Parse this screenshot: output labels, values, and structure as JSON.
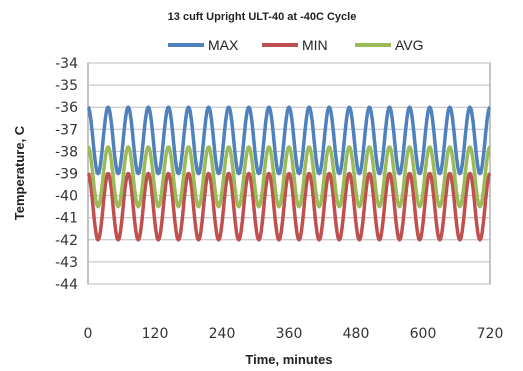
{
  "chart_data": {
    "type": "line",
    "title": "13 cuft Upright ULT-40 at -40C Cycle",
    "xlabel": "Time, minutes",
    "ylabel": "Temperature, C",
    "xlim": [
      0,
      720
    ],
    "ylim": [
      -44,
      -34
    ],
    "xticks": [
      0,
      120,
      240,
      360,
      480,
      600,
      720
    ],
    "yticks": [
      -34,
      -35,
      -36,
      -37,
      -38,
      -39,
      -40,
      -41,
      -42,
      -43,
      -44
    ],
    "grid": "horizontal",
    "legend_position": "top",
    "cycle_period_minutes": 36,
    "series": [
      {
        "name": "MAX",
        "color": "#4f81bd",
        "min": -39,
        "max": -36
      },
      {
        "name": "MIN",
        "color": "#c0504d",
        "min": -42,
        "max": -39
      },
      {
        "name": "AVG",
        "color": "#9bbb59",
        "min": -40.5,
        "max": -37.8
      }
    ]
  }
}
